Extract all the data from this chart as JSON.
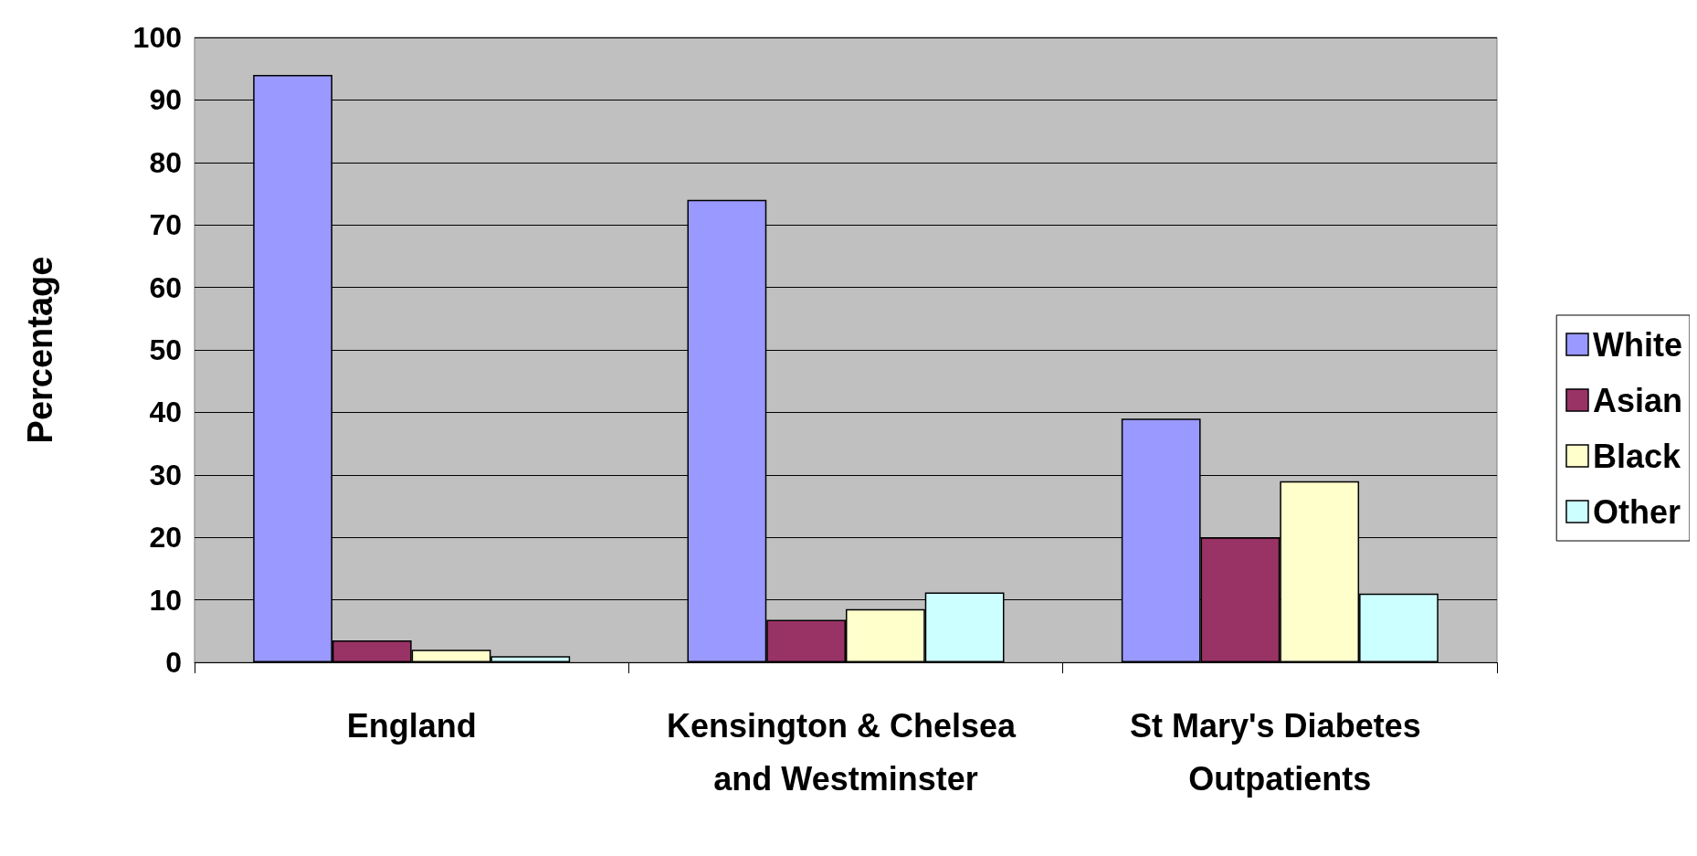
{
  "chart_data": {
    "type": "bar",
    "ylabel": "Percentage",
    "categories": [
      "England",
      "Kensington & Chelsea and Westminster",
      "St Mary's Diabetes Outpatients"
    ],
    "series": [
      {
        "name": "White",
        "color": "#9999ff",
        "values": [
          94,
          74,
          39
        ]
      },
      {
        "name": "Asian",
        "color": "#993366",
        "values": [
          3.5,
          6.8,
          20
        ]
      },
      {
        "name": "Black",
        "color": "#ffffcc",
        "values": [
          2,
          8.5,
          29
        ]
      },
      {
        "name": "Other",
        "color": "#ccffff",
        "values": [
          1,
          11.2,
          11
        ]
      }
    ],
    "ylim": [
      0,
      100
    ],
    "yticks": [
      0,
      10,
      20,
      30,
      40,
      50,
      60,
      70,
      80,
      90,
      100
    ],
    "grid": "y",
    "legend": "right"
  }
}
